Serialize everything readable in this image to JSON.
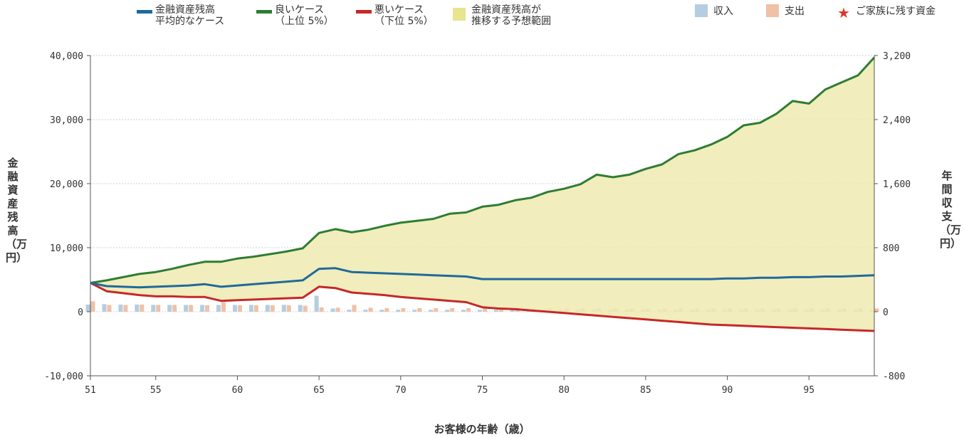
{
  "legend": {
    "avg_line1": "金融資産残高",
    "avg_line2": "平均的なケース",
    "good_line1": "良いケース",
    "good_line2": "（上位 5%）",
    "bad_line1": "悪いケース",
    "bad_line2": "（下位 5%）",
    "range_line1": "金融資産残高が",
    "range_line2": "推移する予想範囲",
    "income": "収入",
    "expense": "支出",
    "family_funds": "ご家族に残す資金"
  },
  "colors": {
    "average": "#1f6a9a",
    "good": "#2e7d32",
    "bad": "#c62828",
    "range": "#eeeab0",
    "income": "#b5cde0",
    "expense": "#efc1a6",
    "star": "#d9372b"
  },
  "chart_data": {
    "type": "line",
    "xlabel": "お客様の年齢（歳）",
    "ylabel_left": "金融資産残高（万円）",
    "ylabel_right": "年間収支（万円）",
    "xlim": [
      51,
      99
    ],
    "ylim_left": [
      -10000,
      40000
    ],
    "ylim_right": [
      -800,
      3200
    ],
    "x_ticks": [
      51,
      55,
      60,
      65,
      70,
      75,
      80,
      85,
      90,
      95
    ],
    "y_ticks_left": [
      "-10,000",
      "0",
      "10,000",
      "20,000",
      "30,000",
      "40,000"
    ],
    "y_ticks_right": [
      "-800",
      "0",
      "800",
      "1,600",
      "2,400",
      "3,200"
    ],
    "grid": true,
    "x": [
      51,
      52,
      53,
      54,
      55,
      56,
      57,
      58,
      59,
      60,
      61,
      62,
      63,
      64,
      65,
      66,
      67,
      68,
      69,
      70,
      71,
      72,
      73,
      74,
      75,
      76,
      77,
      78,
      79,
      80,
      81,
      82,
      83,
      84,
      85,
      86,
      87,
      88,
      89,
      90,
      91,
      92,
      93,
      94,
      95,
      96,
      97,
      98,
      99
    ],
    "series": [
      {
        "name": "良いケース（上位 5%）",
        "values": [
          4500,
          4900,
          5400,
          5900,
          6200,
          6700,
          7300,
          7800,
          7800,
          8300,
          8600,
          9000,
          9400,
          9900,
          12300,
          12900,
          12400,
          12800,
          13400,
          13900,
          14200,
          14500,
          15300,
          15500,
          16400,
          16700,
          17400,
          17800,
          18700,
          19200,
          19900,
          21400,
          21000,
          21400,
          22300,
          23000,
          24600,
          25200,
          26100,
          27300,
          29100,
          29500,
          30900,
          32900,
          32500,
          34700,
          35800,
          36900,
          39700
        ]
      },
      {
        "name": "金融資産残高 平均的なケース",
        "values": [
          4500,
          4000,
          3900,
          3800,
          3900,
          4000,
          4100,
          4300,
          3900,
          4100,
          4300,
          4500,
          4700,
          4900,
          6700,
          6800,
          6200,
          6100,
          6000,
          5900,
          5800,
          5700,
          5600,
          5500,
          5100,
          5100,
          5100,
          5100,
          5100,
          5100,
          5100,
          5100,
          5100,
          5100,
          5100,
          5100,
          5100,
          5100,
          5100,
          5200,
          5200,
          5300,
          5300,
          5400,
          5400,
          5500,
          5500,
          5600,
          5700
        ]
      },
      {
        "name": "悪いケース（下位 5%）",
        "values": [
          4500,
          3200,
          2900,
          2600,
          2400,
          2400,
          2300,
          2300,
          1700,
          1800,
          1900,
          2000,
          2100,
          2200,
          3900,
          3700,
          3000,
          2800,
          2600,
          2300,
          2100,
          1900,
          1700,
          1500,
          700,
          500,
          400,
          200,
          0,
          -200,
          -400,
          -600,
          -800,
          -1000,
          -1200,
          -1400,
          -1600,
          -1800,
          -2000,
          -2100,
          -2200,
          -2300,
          -2400,
          -2500,
          -2600,
          -2700,
          -2800,
          -2900,
          -3000
        ]
      },
      {
        "name": "収入",
        "axis": "right",
        "values": [
          90,
          95,
          90,
          90,
          85,
          85,
          85,
          85,
          85,
          85,
          85,
          85,
          85,
          85,
          200,
          40,
          25,
          25,
          25,
          25,
          25,
          25,
          25,
          25,
          25,
          25,
          25,
          25,
          25,
          25,
          25,
          25,
          25,
          25,
          25,
          25,
          25,
          25,
          25,
          25,
          25,
          25,
          25,
          25,
          25,
          25,
          25,
          25,
          25
        ]
      },
      {
        "name": "支出",
        "axis": "right",
        "values": [
          130,
          85,
          85,
          90,
          85,
          85,
          85,
          80,
          120,
          80,
          80,
          80,
          80,
          75,
          55,
          50,
          85,
          50,
          45,
          45,
          45,
          45,
          45,
          45,
          40,
          40,
          40,
          40,
          40,
          40,
          40,
          40,
          40,
          40,
          40,
          40,
          40,
          40,
          40,
          40,
          40,
          40,
          40,
          40,
          40,
          40,
          40,
          40,
          40
        ]
      }
    ]
  }
}
